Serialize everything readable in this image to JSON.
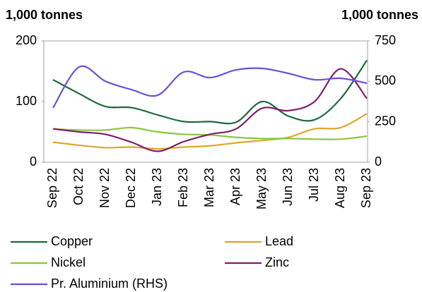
{
  "chart_data": {
    "type": "line",
    "ylabel": "1,000 tonnes",
    "y2label": "1,000 tonnes",
    "categories": [
      "Sep 22",
      "Oct 22",
      "Nov 22",
      "Dec 22",
      "Jan 23",
      "Feb 23",
      "Mar 23",
      "Apr 23",
      "May 23",
      "Jun 23",
      "Jul 23",
      "Aug 23",
      "Sep 23"
    ],
    "ylim": [
      0,
      200
    ],
    "yticks": [
      0,
      100,
      200
    ],
    "y2lim": [
      0,
      750
    ],
    "y2ticks": [
      0,
      250,
      500,
      750
    ],
    "legend": "bottom",
    "series": [
      {
        "name": "Copper",
        "color": "#1a6b3c",
        "values": [
          136,
          113,
          92,
          90,
          78,
          67,
          67,
          66,
          100,
          76,
          70,
          105,
          168
        ]
      },
      {
        "name": "Lead",
        "color": "#e0a526",
        "values": [
          33,
          28,
          24,
          25,
          22,
          25,
          27,
          32,
          36,
          41,
          55,
          57,
          80
        ]
      },
      {
        "name": "Nickel",
        "color": "#8cc63f",
        "values": [
          55,
          53,
          53,
          57,
          50,
          46,
          45,
          41,
          39,
          39,
          38,
          38,
          43
        ]
      },
      {
        "name": "Zinc",
        "color": "#7b1f6f",
        "values": [
          55,
          50,
          46,
          33,
          18,
          34,
          46,
          55,
          89,
          85,
          100,
          154,
          105
        ]
      },
      {
        "name": "Pr. Aluminium (RHS)",
        "color": "#6a4fd8",
        "axis": "y2",
        "values": [
          336,
          589,
          501,
          449,
          414,
          558,
          523,
          571,
          580,
          549,
          510,
          519,
          488
        ]
      }
    ]
  }
}
